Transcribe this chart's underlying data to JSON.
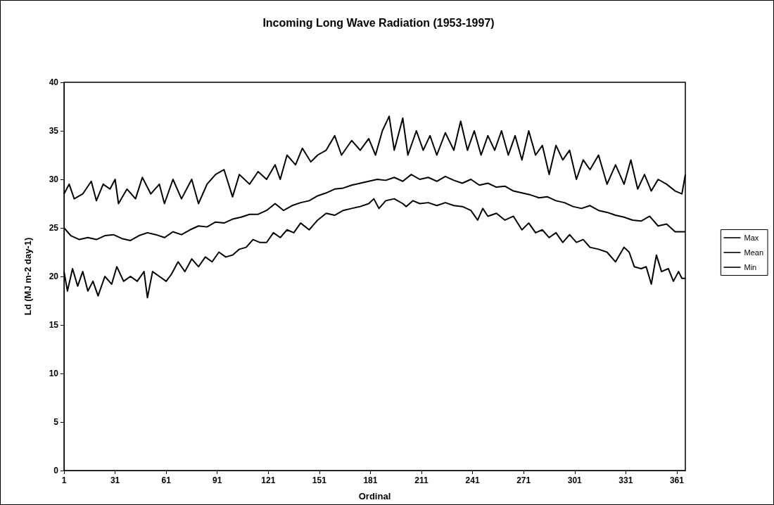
{
  "chart_data": {
    "type": "line",
    "title": "Incoming Long Wave Radiation (1953-1997)",
    "xlabel": "Ordinal",
    "ylabel": "Ld (MJ m-2 day-1)",
    "xlim": [
      1,
      366
    ],
    "xticks": [
      1,
      31,
      61,
      91,
      121,
      151,
      181,
      211,
      241,
      271,
      301,
      331,
      361
    ],
    "ylim": [
      0,
      40
    ],
    "yticks": [
      0,
      5,
      10,
      15,
      20,
      25,
      30,
      35,
      40
    ],
    "grid": false,
    "legend": "right",
    "marker": "none",
    "line_style": "solid",
    "series": [
      {
        "name": "Max",
        "color": "#000000",
        "x": [
          1,
          4,
          7,
          12,
          17,
          20,
          24,
          28,
          31,
          33,
          38,
          43,
          47,
          52,
          57,
          60,
          65,
          70,
          76,
          80,
          85,
          90,
          95,
          100,
          104,
          110,
          115,
          120,
          125,
          128,
          132,
          137,
          141,
          146,
          150,
          155,
          160,
          164,
          170,
          175,
          180,
          184,
          188,
          192,
          195,
          200,
          203,
          208,
          212,
          216,
          220,
          225,
          230,
          234,
          238,
          242,
          246,
          250,
          254,
          258,
          262,
          266,
          270,
          274,
          278,
          282,
          286,
          290,
          294,
          298,
          302,
          306,
          310,
          315,
          320,
          325,
          330,
          334,
          338,
          342,
          346,
          350,
          355,
          360,
          364,
          366
        ],
        "values": [
          28.5,
          29.5,
          28,
          28.5,
          29.8,
          27.8,
          29.5,
          29,
          30,
          27.5,
          29,
          28,
          30.2,
          28.5,
          29.5,
          27.5,
          30,
          28,
          30,
          27.5,
          29.5,
          30.5,
          31,
          28.2,
          30.5,
          29.5,
          30.8,
          30,
          31.5,
          30,
          32.5,
          31.5,
          33.2,
          31.8,
          32.5,
          33,
          34.5,
          32.5,
          34,
          33,
          34.2,
          32.5,
          35,
          36.5,
          33,
          36.3,
          32.5,
          35,
          33,
          34.5,
          32.5,
          34.8,
          33,
          36,
          33,
          35,
          32.5,
          34.5,
          33,
          35,
          32.5,
          34.5,
          32,
          35,
          32.5,
          33.5,
          30.5,
          33.5,
          32,
          33,
          30,
          32,
          31,
          32.5,
          29.5,
          31.5,
          29.5,
          32,
          29,
          30.5,
          28.8,
          30,
          29.5,
          28.8,
          28.5,
          30.5
        ]
      },
      {
        "name": "Mean",
        "color": "#000000",
        "x": [
          1,
          5,
          10,
          15,
          20,
          25,
          30,
          35,
          40,
          45,
          50,
          55,
          60,
          65,
          70,
          75,
          80,
          85,
          90,
          95,
          100,
          105,
          110,
          115,
          120,
          125,
          130,
          135,
          140,
          145,
          150,
          155,
          160,
          165,
          170,
          175,
          180,
          185,
          190,
          195,
          200,
          205,
          210,
          215,
          220,
          225,
          230,
          235,
          240,
          245,
          250,
          255,
          260,
          265,
          270,
          275,
          280,
          285,
          290,
          295,
          300,
          305,
          310,
          315,
          320,
          325,
          330,
          335,
          340,
          345,
          350,
          355,
          360,
          366
        ],
        "values": [
          25,
          24.2,
          23.8,
          24,
          23.8,
          24.2,
          24.3,
          23.9,
          23.7,
          24.2,
          24.5,
          24.3,
          24,
          24.6,
          24.3,
          24.8,
          25.2,
          25.1,
          25.6,
          25.5,
          25.9,
          26.1,
          26.4,
          26.4,
          26.8,
          27.5,
          26.8,
          27.3,
          27.6,
          27.8,
          28.3,
          28.6,
          29,
          29.1,
          29.4,
          29.6,
          29.8,
          30,
          29.9,
          30.2,
          29.8,
          30.5,
          30,
          30.2,
          29.8,
          30.3,
          29.9,
          29.6,
          30,
          29.4,
          29.6,
          29.2,
          29.3,
          28.8,
          28.6,
          28.4,
          28.1,
          28.2,
          27.8,
          27.6,
          27.2,
          27,
          27.3,
          26.8,
          26.6,
          26.3,
          26.1,
          25.8,
          25.7,
          26.2,
          25.2,
          25.4,
          24.6,
          24.6
        ]
      },
      {
        "name": "Min",
        "color": "#000000",
        "x": [
          1,
          3,
          6,
          9,
          12,
          15,
          18,
          21,
          25,
          29,
          32,
          36,
          40,
          44,
          48,
          50,
          53,
          57,
          61,
          64,
          68,
          72,
          76,
          80,
          84,
          88,
          92,
          96,
          100,
          104,
          108,
          112,
          116,
          120,
          124,
          128,
          132,
          136,
          140,
          145,
          150,
          155,
          160,
          165,
          170,
          175,
          180,
          183,
          186,
          190,
          195,
          200,
          202,
          206,
          210,
          215,
          220,
          225,
          230,
          235,
          240,
          244,
          247,
          250,
          255,
          260,
          265,
          270,
          274,
          278,
          282,
          286,
          290,
          294,
          298,
          302,
          306,
          310,
          315,
          320,
          325,
          330,
          333,
          336,
          340,
          343,
          346,
          349,
          352,
          356,
          359,
          362,
          364,
          366
        ],
        "values": [
          20.5,
          18.5,
          20.8,
          19,
          20.5,
          18.5,
          19.5,
          18,
          20,
          19.2,
          21,
          19.5,
          20,
          19.5,
          20.5,
          17.8,
          20.5,
          20,
          19.5,
          20.2,
          21.5,
          20.5,
          21.8,
          21,
          22,
          21.5,
          22.5,
          22,
          22.2,
          22.8,
          23,
          23.8,
          23.5,
          23.5,
          24.5,
          24,
          24.8,
          24.5,
          25.5,
          24.8,
          25.8,
          26.5,
          26.3,
          26.8,
          27,
          27.2,
          27.5,
          28,
          27,
          27.8,
          28,
          27.5,
          27.2,
          27.8,
          27.5,
          27.6,
          27.3,
          27.6,
          27.3,
          27.2,
          26.8,
          25.8,
          27,
          26.2,
          26.5,
          25.8,
          26.2,
          24.8,
          25.5,
          24.5,
          24.8,
          24,
          24.5,
          23.5,
          24.3,
          23.5,
          23.8,
          23,
          22.8,
          22.5,
          21.5,
          23,
          22.5,
          21,
          20.8,
          21,
          19.2,
          22.2,
          20.5,
          20.8,
          19.5,
          20.5,
          19.8,
          19.8
        ]
      }
    ]
  }
}
